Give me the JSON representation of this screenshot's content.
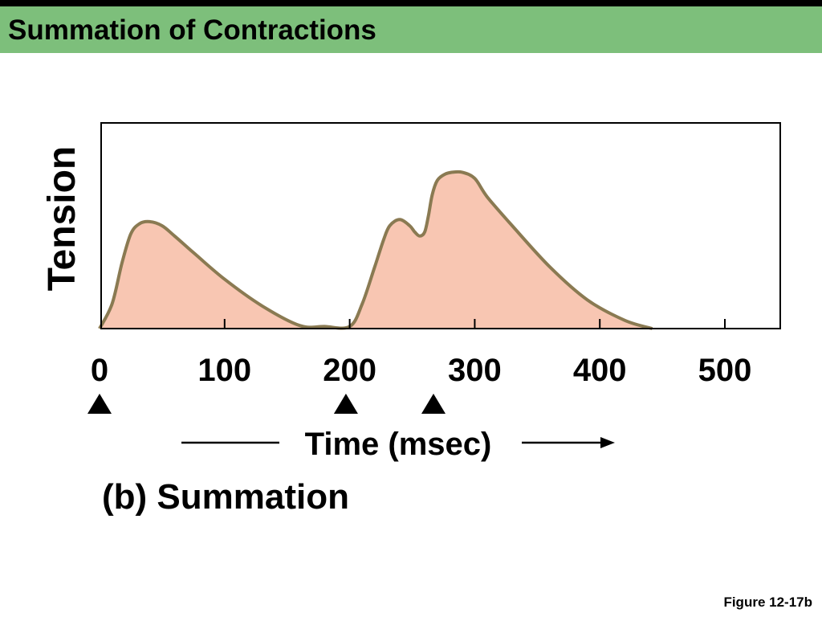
{
  "slide": {
    "title": "Summation of Contractions",
    "figure_ref": "Figure 12-17b"
  },
  "colors": {
    "header_bg": "#7dbf7b",
    "curve_fill": "#f8c6b2",
    "curve_stroke": "#8a7a52",
    "axis": "#000000"
  },
  "chart_data": {
    "type": "area",
    "title": "(b) Summation",
    "xlabel": "Time (msec)",
    "ylabel": "Tension",
    "xlim": [
      0,
      550
    ],
    "ylim": [
      0,
      1
    ],
    "x_ticks": [
      "0",
      "100",
      "200",
      "300",
      "400",
      "500"
    ],
    "x_tick_values": [
      0,
      100,
      200,
      300,
      400,
      500
    ],
    "stimuli_msec": [
      0,
      197,
      267
    ],
    "grid": false,
    "series": [
      {
        "x": [
          0,
          10,
          18,
          25,
          32,
          40,
          50,
          60,
          75,
          100,
          130,
          160,
          180,
          200,
          210,
          220,
          227,
          232,
          240,
          248,
          252,
          256,
          260,
          263,
          266,
          270,
          276,
          282,
          290,
          300,
          310,
          330,
          360,
          390,
          420,
          442
        ],
        "y": [
          0,
          0.12,
          0.32,
          0.46,
          0.51,
          0.52,
          0.5,
          0.45,
          0.37,
          0.24,
          0.11,
          0.015,
          0.01,
          0.01,
          0.12,
          0.3,
          0.43,
          0.5,
          0.53,
          0.5,
          0.47,
          0.45,
          0.47,
          0.55,
          0.65,
          0.72,
          0.75,
          0.76,
          0.76,
          0.73,
          0.64,
          0.5,
          0.3,
          0.14,
          0.04,
          0
        ]
      }
    ]
  }
}
